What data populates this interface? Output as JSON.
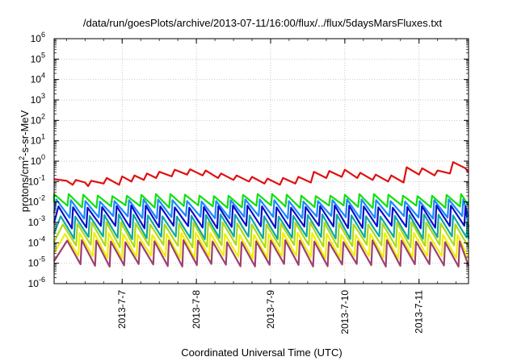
{
  "chart_data": {
    "type": "line",
    "title": "/data/run/goesPlots/archive/2013-07-11/16:00/flux/../flux/5daysMarsFluxes.txt",
    "xlabel": "Coordinated Universal Time (UTC)",
    "ylabel_prefix": "protons/cm",
    "ylabel_sup": "2",
    "ylabel_suffix": "-s-sr-MeV",
    "y_scale": "log",
    "ylim": [
      1e-06,
      1000000.0
    ],
    "xlim": [
      "2013-07-06T02:00",
      "2013-07-11T16:00"
    ],
    "grid": true,
    "x_ticks": [
      {
        "value": "2013-07-07T00:00",
        "label": "2013-7-7"
      },
      {
        "value": "2013-07-08T00:00",
        "label": "2013-7-8"
      },
      {
        "value": "2013-07-09T00:00",
        "label": "2013-7-9"
      },
      {
        "value": "2013-07-10T00:00",
        "label": "2013-7-10"
      },
      {
        "value": "2013-07-11T00:00",
        "label": "2013-7-11"
      }
    ],
    "y_ticks": [
      {
        "value": 1e-06,
        "base": "10",
        "exp": "-6"
      },
      {
        "value": 1e-05,
        "base": "10",
        "exp": "-5"
      },
      {
        "value": 0.0001,
        "base": "10",
        "exp": "-4"
      },
      {
        "value": 0.001,
        "base": "10",
        "exp": "-3"
      },
      {
        "value": 0.01,
        "base": "10",
        "exp": "-2"
      },
      {
        "value": 0.1,
        "base": "10",
        "exp": "-1"
      },
      {
        "value": 1,
        "base": "10",
        "exp": "0"
      },
      {
        "value": 10,
        "base": "10",
        "exp": "1"
      },
      {
        "value": 100,
        "base": "10",
        "exp": "2"
      },
      {
        "value": 1000,
        "base": "10",
        "exp": "3"
      },
      {
        "value": 10000,
        "base": "10",
        "exp": "4"
      },
      {
        "value": 100000,
        "base": "10",
        "exp": "5"
      },
      {
        "value": 1000000,
        "base": "10",
        "exp": "6"
      }
    ],
    "series": [
      {
        "color": "#e01010",
        "points": [
          [
            "2013-07-06T02:00",
            0.13
          ],
          [
            "2013-07-06T06:00",
            0.11
          ],
          [
            "2013-07-06T08:00",
            0.07
          ],
          [
            "2013-07-06T09:00",
            0.12
          ],
          [
            "2013-07-06T12:00",
            0.09
          ],
          [
            "2013-07-06T13:00",
            0.06
          ],
          [
            "2013-07-06T14:00",
            0.11
          ],
          [
            "2013-07-06T18:00",
            0.08
          ],
          [
            "2013-07-06T19:00",
            0.15
          ],
          [
            "2013-07-06T23:00",
            0.07
          ],
          [
            "2013-07-07T00:00",
            0.18
          ],
          [
            "2013-07-07T03:00",
            0.1
          ],
          [
            "2013-07-07T04:00",
            0.2
          ],
          [
            "2013-07-07T07:00",
            0.12
          ],
          [
            "2013-07-07T08:00",
            0.25
          ],
          [
            "2013-07-07T11:00",
            0.15
          ],
          [
            "2013-07-07T12:00",
            0.3
          ],
          [
            "2013-07-07T16:00",
            0.18
          ],
          [
            "2013-07-07T17:00",
            0.38
          ],
          [
            "2013-07-07T21:00",
            0.22
          ],
          [
            "2013-07-07T22:00",
            0.4
          ],
          [
            "2013-07-08T02:00",
            0.2
          ],
          [
            "2013-07-08T03:00",
            0.35
          ],
          [
            "2013-07-08T07:00",
            0.15
          ],
          [
            "2013-07-08T08:00",
            0.25
          ],
          [
            "2013-07-08T12:00",
            0.12
          ],
          [
            "2013-07-08T13:00",
            0.2
          ],
          [
            "2013-07-08T17:00",
            0.1
          ],
          [
            "2013-07-08T18:00",
            0.17
          ],
          [
            "2013-07-08T22:00",
            0.08
          ],
          [
            "2013-07-08T23:00",
            0.14
          ],
          [
            "2013-07-09T03:00",
            0.07
          ],
          [
            "2013-07-09T04:00",
            0.15
          ],
          [
            "2013-07-09T08:00",
            0.08
          ],
          [
            "2013-07-09T09:00",
            0.17
          ],
          [
            "2013-07-09T13:00",
            0.09
          ],
          [
            "2013-07-09T14:00",
            0.3
          ],
          [
            "2013-07-09T18:00",
            0.15
          ],
          [
            "2013-07-09T19:00",
            0.33
          ],
          [
            "2013-07-09T23:00",
            0.17
          ],
          [
            "2013-07-10T00:00",
            0.38
          ],
          [
            "2013-07-10T04:00",
            0.15
          ],
          [
            "2013-07-10T05:00",
            0.27
          ],
          [
            "2013-07-10T09:00",
            0.12
          ],
          [
            "2013-07-10T10:00",
            0.22
          ],
          [
            "2013-07-10T14:00",
            0.1
          ],
          [
            "2013-07-10T15:00",
            0.2
          ],
          [
            "2013-07-10T19:00",
            0.09
          ],
          [
            "2013-07-10T20:00",
            0.5
          ],
          [
            "2013-07-11T00:00",
            0.22
          ],
          [
            "2013-07-11T01:00",
            0.45
          ],
          [
            "2013-07-11T05:00",
            0.2
          ],
          [
            "2013-07-11T06:00",
            0.35
          ],
          [
            "2013-07-11T10:00",
            0.25
          ],
          [
            "2013-07-11T11:00",
            0.9
          ],
          [
            "2013-07-11T15:00",
            0.45
          ],
          [
            "2013-07-11T16:00",
            0.28
          ]
        ]
      },
      {
        "color": "#10e010",
        "base": 0.006,
        "peak": 0.022,
        "phase": 0
      },
      {
        "color": "#1a88ff",
        "base": 0.0018,
        "peak": 0.012,
        "phase": 0.15
      },
      {
        "color": "#0a10c8",
        "base": 0.0006,
        "peak": 0.006,
        "phase": 0.3
      },
      {
        "color": "#10a8a0",
        "base": 0.00018,
        "peak": 0.0022,
        "phase": 0.45
      },
      {
        "color": "#b0d818",
        "base": 7e-05,
        "peak": 0.0009,
        "phase": 0.6
      },
      {
        "color": "#f0f000",
        "base": 2e-05,
        "peak": 0.00028,
        "phase": 0.75
      },
      {
        "color": "#a04070",
        "base": 8e-06,
        "peak": 0.00012,
        "phase": 0.9
      }
    ],
    "sawtooth_period_hours": 4.7
  }
}
